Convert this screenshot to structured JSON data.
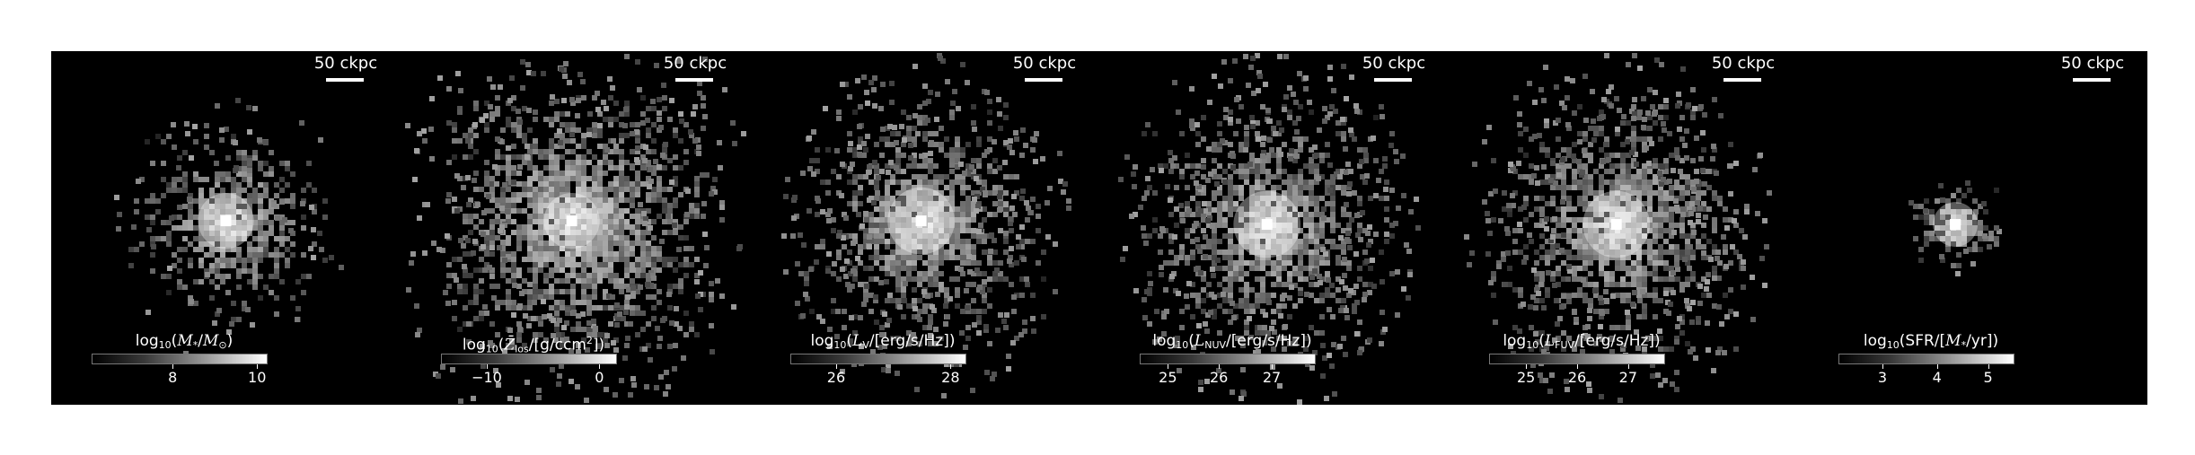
{
  "figure": {
    "panels": [
      {
        "id": "stellar-mass",
        "scale_label": "50 ckpc",
        "colorbar": {
          "title": "log10(M*/M⊙)",
          "ticks": [
            "8",
            "10"
          ],
          "tick_fractions": [
            0.46,
            0.94
          ]
        },
        "map": {
          "center": [
            0.5,
            0.48
          ],
          "core_radius": 0.05,
          "halo_radius": 0.2,
          "noise_extent": 0.28,
          "sparse_points": 60,
          "seed": 11
        }
      },
      {
        "id": "metallicity",
        "scale_label": "50 ckpc",
        "colorbar": {
          "title": "log10(Z̄los/[g/ccm²])",
          "ticks": [
            "−10",
            "0"
          ],
          "tick_fractions": [
            0.26,
            0.9
          ]
        },
        "map": {
          "center": [
            0.49,
            0.48
          ],
          "core_radius": 0.05,
          "halo_radius": 0.32,
          "noise_extent": 0.36,
          "sparse_points": 420,
          "seed": 23
        }
      },
      {
        "id": "v-band-luminosity",
        "scale_label": "50 ckpc",
        "colorbar": {
          "title": "log10(LV/[erg/s/Hz])",
          "ticks": [
            "26",
            "28"
          ],
          "tick_fractions": [
            0.26,
            0.91
          ]
        },
        "map": {
          "center": [
            0.49,
            0.48
          ],
          "core_radius": 0.06,
          "halo_radius": 0.25,
          "noise_extent": 0.35,
          "sparse_points": 320,
          "seed": 37
        }
      },
      {
        "id": "nuv-luminosity",
        "scale_label": "50 ckpc",
        "colorbar": {
          "title": "log10(LNUV/[erg/s/Hz])",
          "ticks": [
            "25",
            "26",
            "27"
          ],
          "tick_fractions": [
            0.16,
            0.45,
            0.75
          ]
        },
        "map": {
          "center": [
            0.48,
            0.49
          ],
          "core_radius": 0.06,
          "halo_radius": 0.26,
          "noise_extent": 0.36,
          "sparse_points": 360,
          "seed": 41
        }
      },
      {
        "id": "fuv-luminosity",
        "scale_label": "50 ckpc",
        "colorbar": {
          "title": "log10(LFUV/[erg/s/Hz])",
          "ticks": [
            "25",
            "26",
            "27"
          ],
          "tick_fractions": [
            0.21,
            0.5,
            0.79
          ]
        },
        "map": {
          "center": [
            0.48,
            0.49
          ],
          "core_radius": 0.06,
          "halo_radius": 0.26,
          "noise_extent": 0.36,
          "sparse_points": 360,
          "seed": 53
        }
      },
      {
        "id": "star-formation-rate",
        "scale_label": "50 ckpc",
        "colorbar": {
          "title": "log10(SFR/[M*/yr])",
          "ticks": [
            "3",
            "4",
            "5"
          ],
          "tick_fractions": [
            0.25,
            0.56,
            0.85
          ]
        },
        "map": {
          "center": [
            0.45,
            0.49
          ],
          "core_radius": 0.04,
          "halo_radius": 0.09,
          "noise_extent": 0.12,
          "sparse_points": 15,
          "seed": 67
        }
      }
    ]
  }
}
